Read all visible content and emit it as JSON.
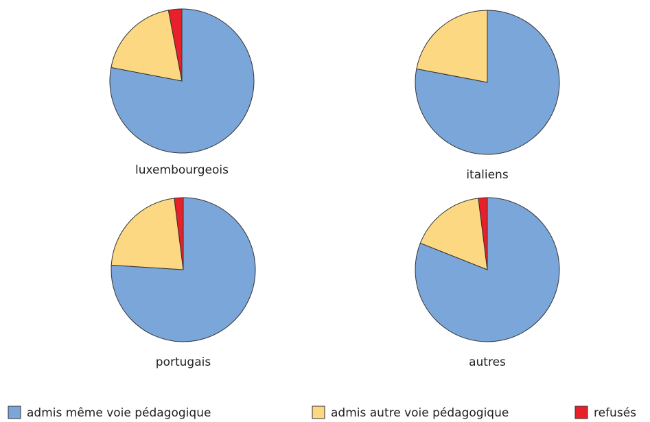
{
  "chart_data": [
    {
      "type": "pie",
      "title": "luxembourgeois",
      "categories": [
        "admis même voie pédagogique",
        "admis autre voie pédagogique",
        "refusés"
      ],
      "values": [
        78,
        19,
        3
      ],
      "colors": [
        "#7ba6d9",
        "#fcd883",
        "#e8202a"
      ]
    },
    {
      "type": "pie",
      "title": "italiens",
      "categories": [
        "admis même voie pédagogique",
        "admis autre voie pédagogique",
        "refusés"
      ],
      "values": [
        78,
        22,
        0
      ],
      "colors": [
        "#7ba6d9",
        "#fcd883",
        "#e8202a"
      ]
    },
    {
      "type": "pie",
      "title": "portugais",
      "categories": [
        "admis même voie pédagogique",
        "admis autre voie pédagogique",
        "refusés"
      ],
      "values": [
        76,
        22,
        2
      ],
      "colors": [
        "#7ba6d9",
        "#fcd883",
        "#e8202a"
      ]
    },
    {
      "type": "pie",
      "title": "autres",
      "categories": [
        "admis même voie pédagogique",
        "admis autre voie pédagogique",
        "refusés"
      ],
      "values": [
        81,
        17,
        2
      ],
      "colors": [
        "#7ba6d9",
        "#fcd883",
        "#e8202a"
      ]
    }
  ]
}
